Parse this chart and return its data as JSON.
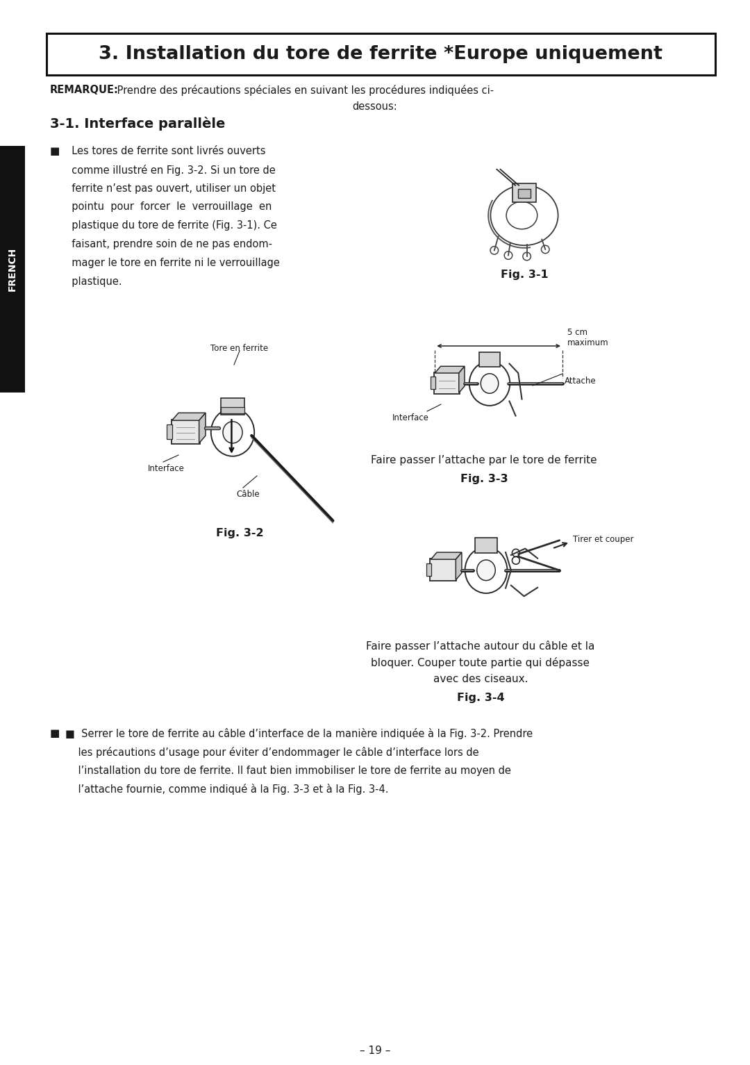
{
  "bg_color": "#ffffff",
  "page_width": 10.8,
  "page_height": 15.33,
  "title": "3. Installation du tore de ferrite *Europe uniquement",
  "remarque_bold": "REMARQUE:",
  "remarque_rest": " Prendre des précautions spéciales en suivant les procédures indiquées ci-",
  "remarque_line2": "dessous:",
  "section_title": "3-1. Interface parallèle",
  "bullet1_lines": [
    "  Les tores de ferrite sont livrés ouverts",
    "  comme illustré en Fig. 3-2. Si un tore de",
    "  ferrite n’est pas ouvert, utiliser un objet",
    "  pointu  pour  forcer  le  verrouillage  en",
    "  plastique du tore de ferrite (Fig. 3-1). Ce",
    "  faisant, prendre soin de ne pas endom-",
    "  mager le tore en ferrite ni le verrouillage",
    "  plastique."
  ],
  "fig1_label": "Fig. 3-1",
  "fig2_label": "Fig. 3-2",
  "fig3_caption": "Faire passer l’attache par le tore de ferrite",
  "fig3_label": "Fig. 3-3",
  "fig4_caption1": "Faire passer l’attache autour du câble et la",
  "fig4_caption2": "bloquer. Couper toute partie qui dépasse",
  "fig4_caption3": "avec des ciseaux.",
  "fig4_label": "Fig. 3-4",
  "label_tore": "Tore en ferrite",
  "label_interface2": "Interface",
  "label_cable": "Câble",
  "label_interface3": "Interface",
  "label_attache": "Attache",
  "label_5cm": "5 cm\nmaximum",
  "label_tirer": "Tirer et couper",
  "bullet2_lines": [
    "■  Serrer le tore de ferrite au câble d’interface de la manière indiquée à la Fig. 3-2. Prendre",
    "    les précautions d’usage pour éviter d’endommager le câble d’interface lors de",
    "    l’installation du tore de ferrite. Il faut bien immobiliser le tore de ferrite au moyen de",
    "    l’attache fournie, comme indiqué à la Fig. 3-3 et à la Fig. 3-4."
  ],
  "page_number": "– 19 –",
  "french_sidebar": "FRENCH",
  "text_color": "#1a1a1a",
  "sidebar_bg": "#111111",
  "sidebar_text_color": "#ffffff"
}
